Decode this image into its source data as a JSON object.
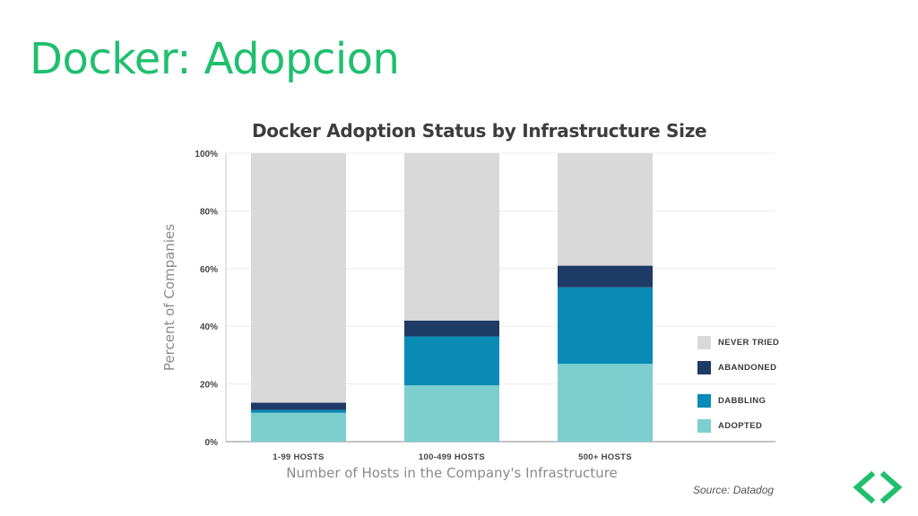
{
  "slide": {
    "title": "Docker: Adopcion",
    "title_color": "#1fbf6e"
  },
  "source": "Source: Datadog",
  "legend": [
    {
      "label": "NEVER TRIED",
      "color": "#d9d9d9"
    },
    {
      "label": "ABANDONED",
      "color": "#1e3a66"
    },
    {
      "label": "DABBLING",
      "color": "#0a8bb5"
    },
    {
      "label": "ADOPTED",
      "color": "#7ccfce"
    }
  ],
  "chart_data": {
    "type": "bar",
    "stacked": true,
    "title": "Docker Adoption Status by Infrastructure Size",
    "xlabel": "Number of Hosts in the Company's Infrastructure",
    "ylabel": "Percent of Companies",
    "categories": [
      "1-99 HOSTS",
      "100-499 HOSTS",
      "500+ HOSTS"
    ],
    "ylim": [
      0,
      100
    ],
    "yticks": [
      "0%",
      "20%",
      "40%",
      "60%",
      "80%",
      "100%"
    ],
    "grid": true,
    "legend_position": "right",
    "series": [
      {
        "name": "ADOPTED",
        "values": [
          10,
          19.5,
          27
        ]
      },
      {
        "name": "DABBLING",
        "values": [
          1,
          17,
          26.5
        ]
      },
      {
        "name": "ABANDONED",
        "values": [
          2.5,
          5.5,
          7.5
        ]
      },
      {
        "name": "NEVER TRIED",
        "values": [
          86.5,
          58,
          39
        ]
      }
    ]
  },
  "nav_icon": "chevrons-left-right-icon",
  "nav_icon_color": "#1fbf6e"
}
